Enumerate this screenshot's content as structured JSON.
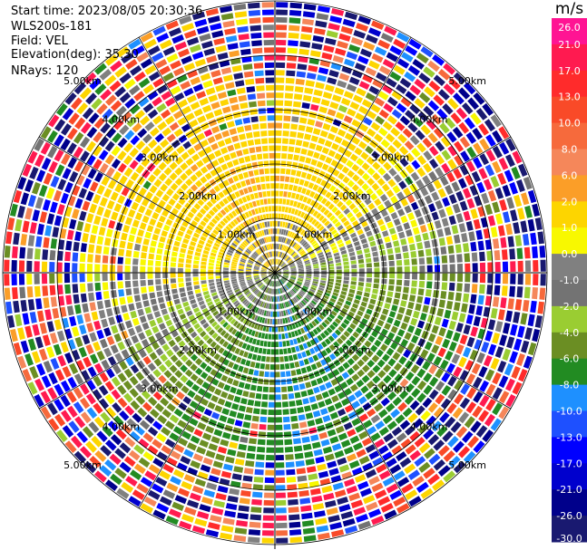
{
  "header": {
    "start_time": "Start time: 2023/08/05 20:30:36",
    "station": "WLS200s-181",
    "field": "Field: VEL",
    "elevation": "Elevation(deg): 35.30",
    "nrays": "NRays: 120"
  },
  "colorbar": {
    "unit": "m/s",
    "labels": [
      "26.0",
      "21.0",
      "17.0",
      "13.0",
      "10.0",
      "8.0",
      "6.0",
      "2.0",
      "1.0",
      "0.0",
      "-1.0",
      "-2.0",
      "-4.0",
      "-6.0",
      "-8.0",
      "-10.0",
      "-13.0",
      "-17.0",
      "-21.0",
      "-26.0",
      "-30.0"
    ],
    "colors": [
      "#ff1493",
      "#ff1a50",
      "#ff2b2b",
      "#f94a28",
      "#f66a3c",
      "#f5875a",
      "#fb9e28",
      "#fdd500",
      "#f8f800",
      "#808080",
      "#737373",
      "#9acd32",
      "#6b8e23",
      "#228b22",
      "#1e90ff",
      "#1e50ff",
      "#0000ff",
      "#0000cd",
      "#00008b",
      "#191970"
    ]
  },
  "chart_data": {
    "type": "heatmap",
    "projection": "PPI polar (range rings + azimuth rays)",
    "field": "VEL",
    "units": "m/s",
    "n_rays": 120,
    "elevation_deg": 35.3,
    "range_rings_km": [
      1.0,
      2.0,
      3.0,
      4.0,
      5.0
    ],
    "ring_labels": [
      "1.00km",
      "2.00km",
      "3.00km",
      "4.00km",
      "5.00km"
    ],
    "clim": [
      -30.0,
      26.0
    ],
    "regions": {
      "north_center": "positive 2-10 m/s (yellow/orange)",
      "south_center": "negative -2 to -6 m/s (green)",
      "near_center": "about 0 m/s (gray)",
      "outer_rings": "noisy, full color range"
    }
  }
}
